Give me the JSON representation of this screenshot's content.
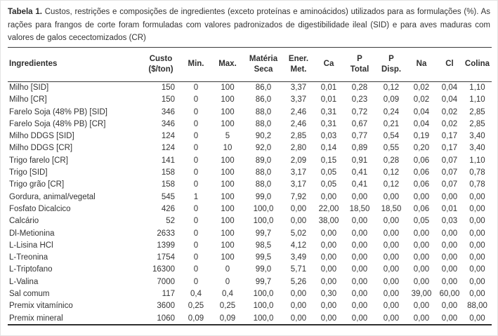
{
  "caption": {
    "label": "Tabela 1.",
    "text": " Custos, restrições e composições de ingredientes (exceto proteínas e aminoácidos) utilizados para as formulações (%). As rações para frangos de corte foram formuladas com valores padronizados de digestibilidade ileal (SID) e para aves maduras com valores de galos cecectomizados (CR)"
  },
  "colors": {
    "text": "#333333",
    "rule": "#3a3a3a",
    "frame_border": "#e4e4e4"
  },
  "table": {
    "columns": [
      {
        "key": "ingrediente",
        "lines": [
          "Ingredientes"
        ],
        "align": "left"
      },
      {
        "key": "custo",
        "lines": [
          "Custo",
          "($/ton)"
        ],
        "align": "right"
      },
      {
        "key": "min",
        "lines": [
          "Min."
        ],
        "align": "center"
      },
      {
        "key": "max",
        "lines": [
          "Max."
        ],
        "align": "center"
      },
      {
        "key": "materia_seca",
        "lines": [
          "Matéria",
          "Seca"
        ],
        "align": "center"
      },
      {
        "key": "ener_met",
        "lines": [
          "Ener.",
          "Met."
        ],
        "align": "center"
      },
      {
        "key": "ca",
        "lines": [
          "Ca"
        ],
        "align": "center"
      },
      {
        "key": "p_total",
        "lines": [
          "P",
          "Total"
        ],
        "align": "center"
      },
      {
        "key": "p_disp",
        "lines": [
          "P",
          "Disp."
        ],
        "align": "center"
      },
      {
        "key": "na",
        "lines": [
          "Na"
        ],
        "align": "center"
      },
      {
        "key": "cl",
        "lines": [
          "Cl"
        ],
        "align": "center"
      },
      {
        "key": "colina",
        "lines": [
          "Colina"
        ],
        "align": "center"
      }
    ],
    "rows": [
      [
        "Milho [SID]",
        "150",
        "0",
        "100",
        "86,0",
        "3,37",
        "0,01",
        "0,28",
        "0,12",
        "0,02",
        "0,04",
        "1,10"
      ],
      [
        "Milho [CR]",
        "150",
        "0",
        "100",
        "86,0",
        "3,37",
        "0,01",
        "0,23",
        "0,09",
        "0,02",
        "0,04",
        "1,10"
      ],
      [
        "Farelo Soja (48% PB) [SID]",
        "346",
        "0",
        "100",
        "88,0",
        "2,46",
        "0,31",
        "0,72",
        "0,24",
        "0,04",
        "0,02",
        "2,85"
      ],
      [
        "Farelo Soja (48% PB) [CR]",
        "346",
        "0",
        "100",
        "88,0",
        "2,46",
        "0,31",
        "0,67",
        "0,21",
        "0,04",
        "0,02",
        "2,85"
      ],
      [
        "Milho DDGS [SID]",
        "124",
        "0",
        "5",
        "90,2",
        "2,85",
        "0,03",
        "0,77",
        "0,54",
        "0,19",
        "0,17",
        "3,40"
      ],
      [
        "Milho DDGS [CR]",
        "124",
        "0",
        "10",
        "92,0",
        "2,80",
        "0,14",
        "0,89",
        "0,55",
        "0,20",
        "0,17",
        "3,40"
      ],
      [
        "Trigo farelo [CR]",
        "141",
        "0",
        "100",
        "89,0",
        "2,09",
        "0,15",
        "0,91",
        "0,28",
        "0,06",
        "0,07",
        "1,10"
      ],
      [
        "Trigo [SID]",
        "158",
        "0",
        "100",
        "88,0",
        "3,17",
        "0,05",
        "0,41",
        "0,12",
        "0,06",
        "0,07",
        "0,78"
      ],
      [
        "Trigo grão [CR]",
        "158",
        "0",
        "100",
        "88,0",
        "3,17",
        "0,05",
        "0,41",
        "0,12",
        "0,06",
        "0,07",
        "0,78"
      ],
      [
        "Gordura, animal/vegetal",
        "545",
        "1",
        "100",
        "99,0",
        "7,92",
        "0,00",
        "0,00",
        "0,00",
        "0,00",
        "0,00",
        "0,00"
      ],
      [
        "Fosfato Dicalcico",
        "426",
        "0",
        "100",
        "100,0",
        "0,00",
        "22,00",
        "18,50",
        "18,50",
        "0,06",
        "0,01",
        "0,00"
      ],
      [
        "Calcário",
        "52",
        "0",
        "100",
        "100,0",
        "0,00",
        "38,00",
        "0,00",
        "0,00",
        "0,05",
        "0,03",
        "0,00"
      ],
      [
        "Dl-Metionina",
        "2633",
        "0",
        "100",
        "99,7",
        "5,02",
        "0,00",
        "0,00",
        "0,00",
        "0,00",
        "0,00",
        "0,00"
      ],
      [
        "L-Lisina HCl",
        "1399",
        "0",
        "100",
        "98,5",
        "4,12",
        "0,00",
        "0,00",
        "0,00",
        "0,00",
        "0,00",
        "0,00"
      ],
      [
        "L-Treonina",
        "1754",
        "0",
        "100",
        "99,5",
        "3,49",
        "0,00",
        "0,00",
        "0,00",
        "0,00",
        "0,00",
        "0,00"
      ],
      [
        "L-Triptofano",
        "16300",
        "0",
        "0",
        "99,0",
        "5,71",
        "0,00",
        "0,00",
        "0,00",
        "0,00",
        "0,00",
        "0,00"
      ],
      [
        "L-Valina",
        "7000",
        "0",
        "0",
        "99,7",
        "5,26",
        "0,00",
        "0,00",
        "0,00",
        "0,00",
        "0,00",
        "0,00"
      ],
      [
        "Sal comum",
        "117",
        "0,4",
        "0,4",
        "100,0",
        "0,00",
        "0,30",
        "0,00",
        "0,00",
        "39,00",
        "60,00",
        "0,00"
      ],
      [
        "Premix vitamínico",
        "3600",
        "0,25",
        "0,25",
        "100,0",
        "0,00",
        "0,00",
        "0,00",
        "0,00",
        "0,00",
        "0,00",
        "88,00"
      ],
      [
        "Premix mineral",
        "1060",
        "0,09",
        "0,09",
        "100,0",
        "0,00",
        "0,00",
        "0,00",
        "0,00",
        "0,00",
        "0,00",
        "0,00"
      ]
    ]
  }
}
